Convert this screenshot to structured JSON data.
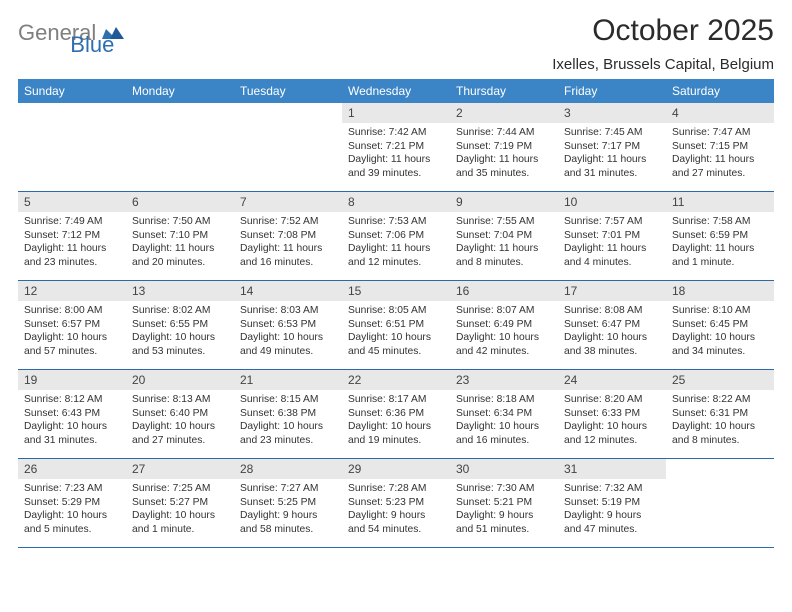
{
  "brand": {
    "gray": "General",
    "blue": "Blue"
  },
  "title": "October 2025",
  "location": "Ixelles, Brussels Capital, Belgium",
  "colors": {
    "header_bg": "#3b85c6",
    "header_text": "#ffffff",
    "daynum_bg": "#e8e8e8",
    "week_border": "#2a6aa8",
    "logo_gray": "#7f7f7f",
    "logo_blue": "#2f6fb0"
  },
  "dow": [
    "Sunday",
    "Monday",
    "Tuesday",
    "Wednesday",
    "Thursday",
    "Friday",
    "Saturday"
  ],
  "weeks": [
    [
      {
        "n": "",
        "sr": "",
        "ss": "",
        "dl1": "",
        "dl2": ""
      },
      {
        "n": "",
        "sr": "",
        "ss": "",
        "dl1": "",
        "dl2": ""
      },
      {
        "n": "",
        "sr": "",
        "ss": "",
        "dl1": "",
        "dl2": ""
      },
      {
        "n": "1",
        "sr": "Sunrise: 7:42 AM",
        "ss": "Sunset: 7:21 PM",
        "dl1": "Daylight: 11 hours",
        "dl2": "and 39 minutes."
      },
      {
        "n": "2",
        "sr": "Sunrise: 7:44 AM",
        "ss": "Sunset: 7:19 PM",
        "dl1": "Daylight: 11 hours",
        "dl2": "and 35 minutes."
      },
      {
        "n": "3",
        "sr": "Sunrise: 7:45 AM",
        "ss": "Sunset: 7:17 PM",
        "dl1": "Daylight: 11 hours",
        "dl2": "and 31 minutes."
      },
      {
        "n": "4",
        "sr": "Sunrise: 7:47 AM",
        "ss": "Sunset: 7:15 PM",
        "dl1": "Daylight: 11 hours",
        "dl2": "and 27 minutes."
      }
    ],
    [
      {
        "n": "5",
        "sr": "Sunrise: 7:49 AM",
        "ss": "Sunset: 7:12 PM",
        "dl1": "Daylight: 11 hours",
        "dl2": "and 23 minutes."
      },
      {
        "n": "6",
        "sr": "Sunrise: 7:50 AM",
        "ss": "Sunset: 7:10 PM",
        "dl1": "Daylight: 11 hours",
        "dl2": "and 20 minutes."
      },
      {
        "n": "7",
        "sr": "Sunrise: 7:52 AM",
        "ss": "Sunset: 7:08 PM",
        "dl1": "Daylight: 11 hours",
        "dl2": "and 16 minutes."
      },
      {
        "n": "8",
        "sr": "Sunrise: 7:53 AM",
        "ss": "Sunset: 7:06 PM",
        "dl1": "Daylight: 11 hours",
        "dl2": "and 12 minutes."
      },
      {
        "n": "9",
        "sr": "Sunrise: 7:55 AM",
        "ss": "Sunset: 7:04 PM",
        "dl1": "Daylight: 11 hours",
        "dl2": "and 8 minutes."
      },
      {
        "n": "10",
        "sr": "Sunrise: 7:57 AM",
        "ss": "Sunset: 7:01 PM",
        "dl1": "Daylight: 11 hours",
        "dl2": "and 4 minutes."
      },
      {
        "n": "11",
        "sr": "Sunrise: 7:58 AM",
        "ss": "Sunset: 6:59 PM",
        "dl1": "Daylight: 11 hours",
        "dl2": "and 1 minute."
      }
    ],
    [
      {
        "n": "12",
        "sr": "Sunrise: 8:00 AM",
        "ss": "Sunset: 6:57 PM",
        "dl1": "Daylight: 10 hours",
        "dl2": "and 57 minutes."
      },
      {
        "n": "13",
        "sr": "Sunrise: 8:02 AM",
        "ss": "Sunset: 6:55 PM",
        "dl1": "Daylight: 10 hours",
        "dl2": "and 53 minutes."
      },
      {
        "n": "14",
        "sr": "Sunrise: 8:03 AM",
        "ss": "Sunset: 6:53 PM",
        "dl1": "Daylight: 10 hours",
        "dl2": "and 49 minutes."
      },
      {
        "n": "15",
        "sr": "Sunrise: 8:05 AM",
        "ss": "Sunset: 6:51 PM",
        "dl1": "Daylight: 10 hours",
        "dl2": "and 45 minutes."
      },
      {
        "n": "16",
        "sr": "Sunrise: 8:07 AM",
        "ss": "Sunset: 6:49 PM",
        "dl1": "Daylight: 10 hours",
        "dl2": "and 42 minutes."
      },
      {
        "n": "17",
        "sr": "Sunrise: 8:08 AM",
        "ss": "Sunset: 6:47 PM",
        "dl1": "Daylight: 10 hours",
        "dl2": "and 38 minutes."
      },
      {
        "n": "18",
        "sr": "Sunrise: 8:10 AM",
        "ss": "Sunset: 6:45 PM",
        "dl1": "Daylight: 10 hours",
        "dl2": "and 34 minutes."
      }
    ],
    [
      {
        "n": "19",
        "sr": "Sunrise: 8:12 AM",
        "ss": "Sunset: 6:43 PM",
        "dl1": "Daylight: 10 hours",
        "dl2": "and 31 minutes."
      },
      {
        "n": "20",
        "sr": "Sunrise: 8:13 AM",
        "ss": "Sunset: 6:40 PM",
        "dl1": "Daylight: 10 hours",
        "dl2": "and 27 minutes."
      },
      {
        "n": "21",
        "sr": "Sunrise: 8:15 AM",
        "ss": "Sunset: 6:38 PM",
        "dl1": "Daylight: 10 hours",
        "dl2": "and 23 minutes."
      },
      {
        "n": "22",
        "sr": "Sunrise: 8:17 AM",
        "ss": "Sunset: 6:36 PM",
        "dl1": "Daylight: 10 hours",
        "dl2": "and 19 minutes."
      },
      {
        "n": "23",
        "sr": "Sunrise: 8:18 AM",
        "ss": "Sunset: 6:34 PM",
        "dl1": "Daylight: 10 hours",
        "dl2": "and 16 minutes."
      },
      {
        "n": "24",
        "sr": "Sunrise: 8:20 AM",
        "ss": "Sunset: 6:33 PM",
        "dl1": "Daylight: 10 hours",
        "dl2": "and 12 minutes."
      },
      {
        "n": "25",
        "sr": "Sunrise: 8:22 AM",
        "ss": "Sunset: 6:31 PM",
        "dl1": "Daylight: 10 hours",
        "dl2": "and 8 minutes."
      }
    ],
    [
      {
        "n": "26",
        "sr": "Sunrise: 7:23 AM",
        "ss": "Sunset: 5:29 PM",
        "dl1": "Daylight: 10 hours",
        "dl2": "and 5 minutes."
      },
      {
        "n": "27",
        "sr": "Sunrise: 7:25 AM",
        "ss": "Sunset: 5:27 PM",
        "dl1": "Daylight: 10 hours",
        "dl2": "and 1 minute."
      },
      {
        "n": "28",
        "sr": "Sunrise: 7:27 AM",
        "ss": "Sunset: 5:25 PM",
        "dl1": "Daylight: 9 hours",
        "dl2": "and 58 minutes."
      },
      {
        "n": "29",
        "sr": "Sunrise: 7:28 AM",
        "ss": "Sunset: 5:23 PM",
        "dl1": "Daylight: 9 hours",
        "dl2": "and 54 minutes."
      },
      {
        "n": "30",
        "sr": "Sunrise: 7:30 AM",
        "ss": "Sunset: 5:21 PM",
        "dl1": "Daylight: 9 hours",
        "dl2": "and 51 minutes."
      },
      {
        "n": "31",
        "sr": "Sunrise: 7:32 AM",
        "ss": "Sunset: 5:19 PM",
        "dl1": "Daylight: 9 hours",
        "dl2": "and 47 minutes."
      },
      {
        "n": "",
        "sr": "",
        "ss": "",
        "dl1": "",
        "dl2": ""
      }
    ]
  ]
}
